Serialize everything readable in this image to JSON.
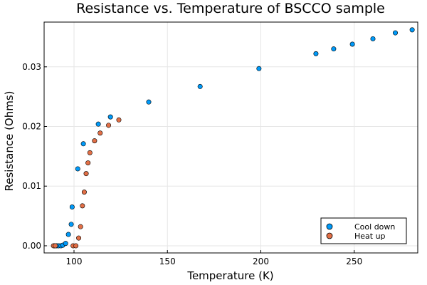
{
  "chart_data": {
    "type": "scatter",
    "title": "Resistance vs. Temperature of BSCCO sample",
    "xlabel": "Temperature (K)",
    "ylabel": "Resistance (Ohms)",
    "xlim": [
      84,
      284
    ],
    "ylim": [
      -0.0012,
      0.0375
    ],
    "xticks": [
      100,
      150,
      200,
      250
    ],
    "xtick_labels": [
      "100",
      "150",
      "200",
      "250"
    ],
    "yticks": [
      0.0,
      0.01,
      0.02,
      0.03
    ],
    "ytick_labels": [
      "0.00",
      "0.01",
      "0.02",
      "0.03"
    ],
    "grid": true,
    "legend_position": "bottom-right",
    "series": [
      {
        "name": "Cool down",
        "color": "#009af9",
        "x": [
          89.5,
          90.8,
          91.8,
          93.0,
          94.0,
          95.5,
          97.0,
          98.5,
          99.0,
          102.0,
          105.0,
          113.0,
          119.5,
          140.0,
          167.5,
          199.0,
          229.5,
          239.0,
          249.0,
          260.0,
          272.0,
          281.0
        ],
        "y": [
          0.0,
          0.0,
          0.0,
          0.0,
          0.0001,
          0.0004,
          0.0019,
          0.0036,
          0.0065,
          0.0129,
          0.0171,
          0.0204,
          0.0216,
          0.0241,
          0.0267,
          0.0297,
          0.0322,
          0.033,
          0.0338,
          0.0347,
          0.0357,
          0.0362
        ]
      },
      {
        "name": "Heat up",
        "color": "#e26f46",
        "x": [
          89.0,
          90.0,
          99.5,
          101.0,
          102.5,
          103.5,
          104.5,
          105.5,
          106.5,
          107.5,
          108.5,
          111.0,
          114.0,
          118.5,
          124.0
        ],
        "y": [
          0.0,
          0.0,
          0.0,
          0.0,
          0.0013,
          0.0032,
          0.0067,
          0.009,
          0.0121,
          0.0139,
          0.0156,
          0.0176,
          0.0189,
          0.0202,
          0.0211
        ]
      }
    ]
  }
}
